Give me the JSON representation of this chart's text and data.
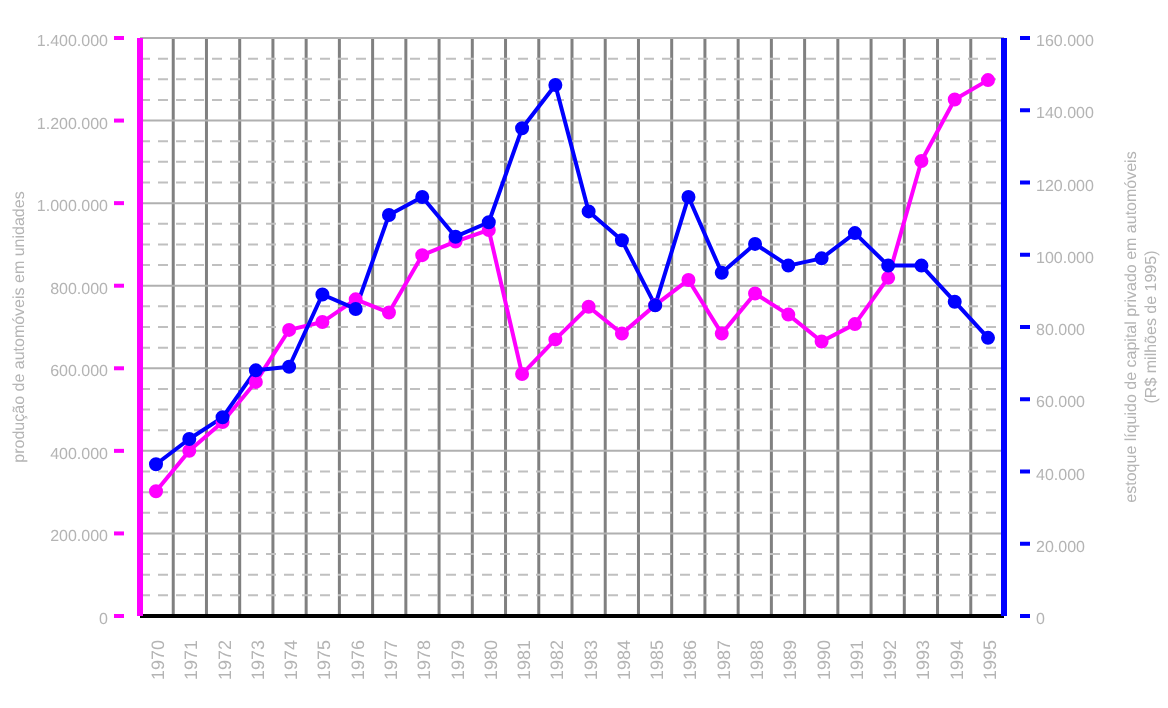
{
  "chart_data": {
    "type": "line",
    "xlabel": null,
    "ylabel": "produção de automóveis em unidades",
    "y2label": "estoque líquido de capital privado em automóveis\n(R$ milhões de 1995)",
    "categories": [
      "1970",
      "1971",
      "1972",
      "1973",
      "1974",
      "1975",
      "1976",
      "1977",
      "1978",
      "1979",
      "1980",
      "1981",
      "1982",
      "1983",
      "1984",
      "1985",
      "1986",
      "1987",
      "1988",
      "1989",
      "1990",
      "1991",
      "1992",
      "1993",
      "1994",
      "1995"
    ],
    "series": [
      {
        "color": "#ff00ff",
        "values": [
          302000,
          400000,
          470000,
          567000,
          693000,
          712000,
          767000,
          735000,
          874000,
          907000,
          935000,
          586000,
          670000,
          749000,
          684000,
          753000,
          814000,
          684000,
          781000,
          730000,
          665000,
          707000,
          819000,
          1102000,
          1251000,
          1298000
        ]
      },
      {
        "color": "#0000ff",
        "axis": "y2",
        "values": [
          42000,
          49000,
          55000,
          68000,
          69000,
          89000,
          85000,
          111000,
          116000,
          105000,
          109000,
          135000,
          147000,
          112000,
          104000,
          86000,
          116000,
          95000,
          103000,
          97000,
          99000,
          106000,
          97000,
          97000,
          87000,
          77000
        ]
      }
    ],
    "ylim": [
      0,
      1400000
    ],
    "yticks": [
      {
        "value": 0,
        "label": "0"
      },
      {
        "value": 50000,
        "label": null
      },
      {
        "value": 100000,
        "label": null
      },
      {
        "value": 150000,
        "label": null
      },
      {
        "value": 200000,
        "label": "200.000"
      },
      {
        "value": 250000,
        "label": null
      },
      {
        "value": 300000,
        "label": null
      },
      {
        "value": 350000,
        "label": null
      },
      {
        "value": 400000,
        "label": "400.000"
      },
      {
        "value": 450000,
        "label": null
      },
      {
        "value": 500000,
        "label": null
      },
      {
        "value": 550000,
        "label": null
      },
      {
        "value": 600000,
        "label": "600.000"
      },
      {
        "value": 650000,
        "label": null
      },
      {
        "value": 700000,
        "label": null
      },
      {
        "value": 750000,
        "label": null
      },
      {
        "value": 800000,
        "label": "800.000"
      },
      {
        "value": 850000,
        "label": null
      },
      {
        "value": 900000,
        "label": null
      },
      {
        "value": 950000,
        "label": null
      },
      {
        "value": 1000000,
        "label": "1.000.000"
      },
      {
        "value": 1050000,
        "label": null
      },
      {
        "value": 1100000,
        "label": null
      },
      {
        "value": 1150000,
        "label": null
      },
      {
        "value": 1200000,
        "label": "1.200.000"
      },
      {
        "value": 1250000,
        "label": null
      },
      {
        "value": 1300000,
        "label": null
      },
      {
        "value": 1350000,
        "label": null
      },
      {
        "value": 1400000,
        "label": "1.400.000"
      }
    ],
    "y2lim": [
      0,
      160000
    ],
    "y2ticks": [
      {
        "value": 0,
        "label": "0"
      },
      {
        "value": 20000,
        "label": "20.000"
      },
      {
        "value": 40000,
        "label": "40.000"
      },
      {
        "value": 60000,
        "label": "60.000"
      },
      {
        "value": 80000,
        "label": "80.000"
      },
      {
        "value": 100000,
        "label": "100.000"
      },
      {
        "value": 120000,
        "label": "120.000"
      },
      {
        "value": 140000,
        "label": "140.000"
      },
      {
        "value": 160000,
        "label": "160.000"
      }
    ],
    "grid": true,
    "marker": "circle",
    "line_style": "solid",
    "legend": false
  }
}
